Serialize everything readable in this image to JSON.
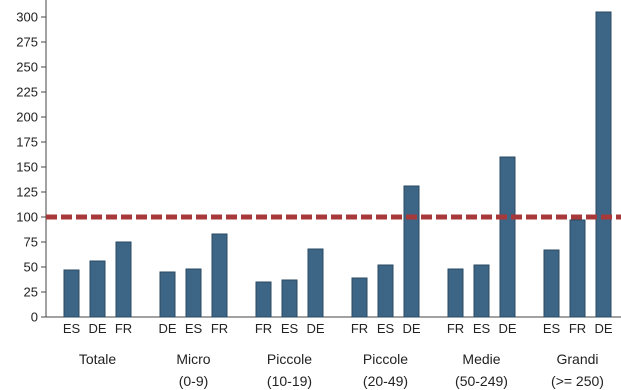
{
  "chart_data": {
    "type": "bar",
    "title": "",
    "xlabel": "",
    "ylabel": "",
    "ylim": [
      0,
      305
    ],
    "yticks": [
      0,
      25,
      50,
      75,
      100,
      125,
      150,
      175,
      200,
      225,
      250,
      275,
      300
    ],
    "bar_color": "#3d6585",
    "reference_line": {
      "value": 100,
      "color": "#a8393a",
      "style": "dashed"
    },
    "grid": false,
    "groups": [
      {
        "label_line1": "Totale",
        "label_line2": "",
        "bars": [
          {
            "label": "ES",
            "value": 47
          },
          {
            "label": "DE",
            "value": 56
          },
          {
            "label": "FR",
            "value": 75
          }
        ]
      },
      {
        "label_line1": "Micro",
        "label_line2": "(0-9)",
        "bars": [
          {
            "label": "DE",
            "value": 45
          },
          {
            "label": "ES",
            "value": 48
          },
          {
            "label": "FR",
            "value": 83
          }
        ]
      },
      {
        "label_line1": "Piccole",
        "label_line2": "(10-19)",
        "bars": [
          {
            "label": "FR",
            "value": 35
          },
          {
            "label": "ES",
            "value": 37
          },
          {
            "label": "DE",
            "value": 68
          }
        ]
      },
      {
        "label_line1": "Piccole",
        "label_line2": "(20-49)",
        "bars": [
          {
            "label": "FR",
            "value": 39
          },
          {
            "label": "ES",
            "value": 52
          },
          {
            "label": "DE",
            "value": 131
          }
        ]
      },
      {
        "label_line1": "Medie",
        "label_line2": "(50-249)",
        "bars": [
          {
            "label": "FR",
            "value": 48
          },
          {
            "label": "ES",
            "value": 52
          },
          {
            "label": "DE",
            "value": 160
          }
        ]
      },
      {
        "label_line1": "Grandi",
        "label_line2": "(>= 250)",
        "bars": [
          {
            "label": "ES",
            "value": 67
          },
          {
            "label": "FR",
            "value": 97
          },
          {
            "label": "DE",
            "value": 305
          }
        ]
      }
    ]
  }
}
